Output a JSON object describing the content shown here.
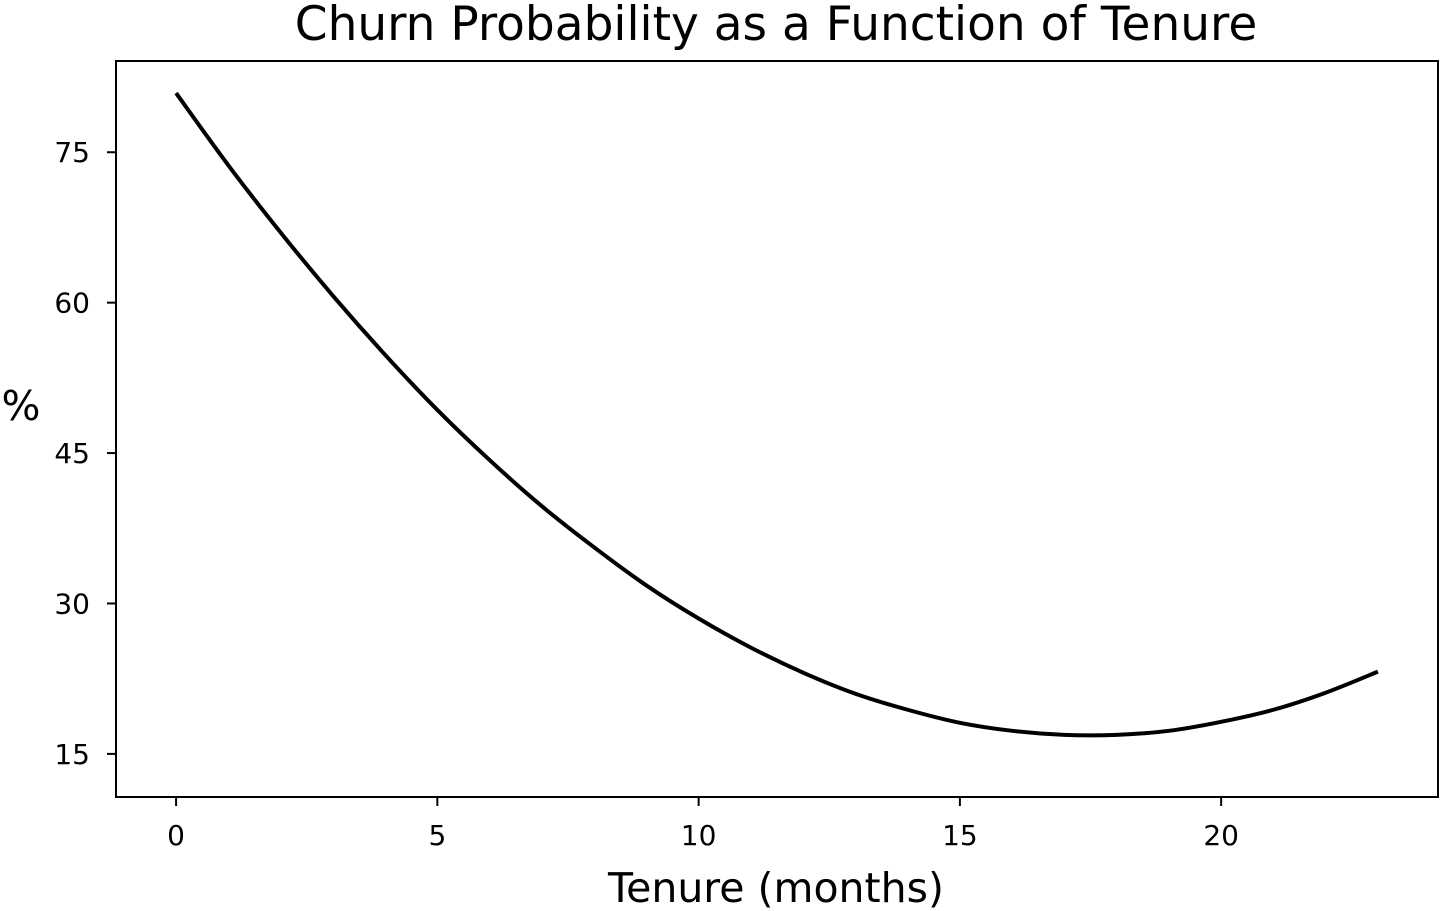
{
  "chart_data": {
    "type": "line",
    "title": "Churn Probability as a Function of Tenure",
    "xlabel": "Tenure (months)",
    "ylabel": "%",
    "xlim": [
      -1.15,
      24.15
    ],
    "ylim": [
      10.7,
      84.1
    ],
    "xticks": [
      0,
      5,
      10,
      15,
      20
    ],
    "yticks": [
      15,
      30,
      45,
      60,
      75
    ],
    "grid": false,
    "colors": {
      "line": "#000000",
      "frame": "#000000",
      "background": "#ffffff"
    },
    "series": [
      {
        "x": [
          0,
          1,
          2,
          3,
          4,
          5,
          6,
          7,
          8,
          9,
          10,
          11,
          12,
          13,
          14,
          15,
          16,
          17,
          18,
          19,
          20,
          21,
          22,
          23
        ],
        "values": [
          80.9,
          73.7,
          67.0,
          60.7,
          54.8,
          49.3,
          44.3,
          39.7,
          35.6,
          31.8,
          28.5,
          25.6,
          23.1,
          21.0,
          19.4,
          18.1,
          17.3,
          16.9,
          16.9,
          17.3,
          18.2,
          19.4,
          21.1,
          23.2
        ]
      }
    ]
  }
}
